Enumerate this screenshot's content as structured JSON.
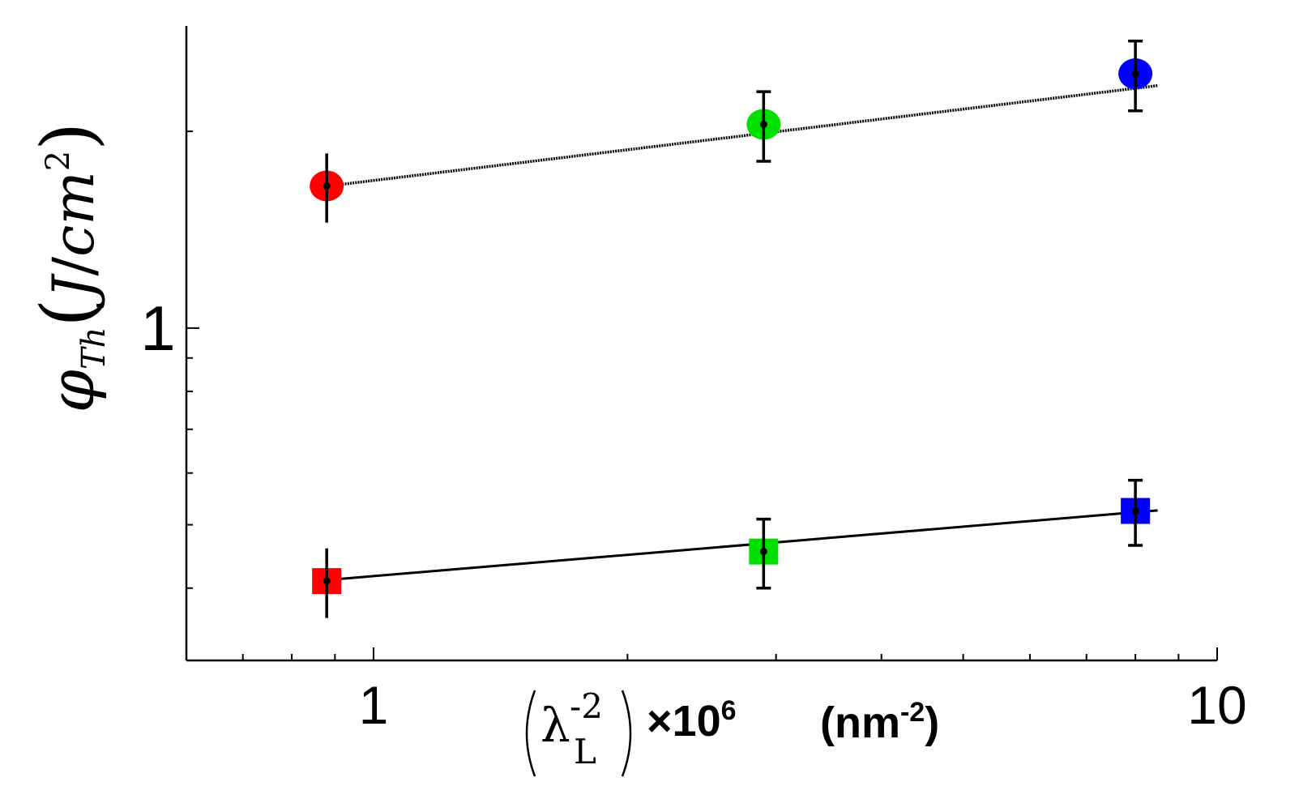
{
  "chart_data": {
    "type": "scatter",
    "xscale": "log",
    "yscale": "log",
    "xlim": [
      0.6,
      10
    ],
    "ylim": [
      0.31,
      2.9
    ],
    "grid": false,
    "legend": "none",
    "x_tick_labels": [
      "1",
      "10"
    ],
    "y_tick_labels": [
      "1"
    ],
    "xlabel": {
      "lambda": "λ",
      "sup": "-2",
      "sub": "L",
      "factor": "×10",
      "factor_exp": "6",
      "unit_open": "(nm",
      "unit_exp": "-2",
      "unit_close": ")"
    },
    "ylabel": {
      "phi": "φ",
      "sub": "Th",
      "unit_open": "(",
      "unit_J": "J",
      "unit_slash": "/",
      "unit_cm": "cm",
      "unit_exp": "2",
      "unit_close": ")"
    },
    "series": [
      {
        "marker": "circle",
        "line_style": "dotted",
        "points": [
          {
            "x": 0.88,
            "y": 1.65,
            "err": 0.2,
            "color": "#ff0000"
          },
          {
            "x": 2.9,
            "y": 2.05,
            "err": 0.25,
            "color": "#00e000"
          },
          {
            "x": 8.0,
            "y": 2.45,
            "err": 0.3,
            "color": "#0000ff"
          }
        ],
        "fit": {
          "x": [
            0.85,
            8.5
          ],
          "y": [
            1.64,
            2.35
          ]
        }
      },
      {
        "marker": "square",
        "line_style": "solid",
        "points": [
          {
            "x": 0.88,
            "y": 0.41,
            "err": 0.05,
            "color": "#ff0000"
          },
          {
            "x": 2.9,
            "y": 0.455,
            "err": 0.055,
            "color": "#00e000"
          },
          {
            "x": 8.0,
            "y": 0.525,
            "err": 0.06,
            "color": "#0000ff"
          }
        ],
        "fit": {
          "x": [
            0.85,
            8.5
          ],
          "y": [
            0.41,
            0.526
          ]
        }
      }
    ]
  }
}
